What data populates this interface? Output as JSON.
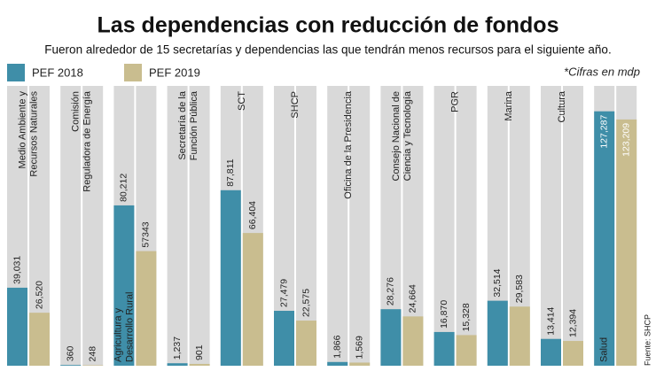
{
  "chart_data": {
    "type": "bar",
    "title": "Las dependencias con reducción de fondos",
    "subtitle": "Fueron alrededor de 15 secretarías y dependencias las que tendrán menos recursos para el siguiente año.",
    "note": "*Cifras en mdp",
    "source": "Fuente: SHCP",
    "categories": [
      [
        "Medio Ambiente y",
        "Recursos Naturales"
      ],
      [
        "Comisión",
        "Reguladora de Energía"
      ],
      [
        "Agricultura y",
        "Desarrollo Rural"
      ],
      [
        "Secretaría de la",
        "Función Pública"
      ],
      [
        "SCT"
      ],
      [
        "SHCP"
      ],
      [
        "Oficina de la Presidencia"
      ],
      [
        "Consejo Nacional de",
        "Ciencia y Tecnología"
      ],
      [
        "PGR"
      ],
      [
        "Marina"
      ],
      [
        "Cultura"
      ],
      [
        "Salud"
      ]
    ],
    "series": [
      {
        "name": "PEF 2018",
        "color": "#3f8ea8",
        "values": [
          39031,
          360,
          80212,
          1237,
          87811,
          27479,
          1866,
          28276,
          16870,
          32514,
          13414,
          127287
        ],
        "value_labels": [
          "39,031",
          "360",
          "80,212",
          "1,237",
          "87,811",
          "27,479",
          "1,866",
          "28,276",
          "16,870",
          "32,514",
          "13,414",
          "127,287"
        ]
      },
      {
        "name": "PEF 2019",
        "color": "#c9bd8f",
        "values": [
          26520,
          248,
          57343,
          901,
          66404,
          22575,
          1569,
          24664,
          15328,
          29583,
          12394,
          123209
        ],
        "value_labels": [
          "26,520",
          "248",
          "57343",
          "901",
          "66,404",
          "22,575",
          "1,569",
          "24,664",
          "15,328",
          "29,583",
          "12,394",
          "123,209"
        ]
      }
    ],
    "ylim": [
      0,
      140000
    ],
    "background_color": "#d9d9d9"
  }
}
